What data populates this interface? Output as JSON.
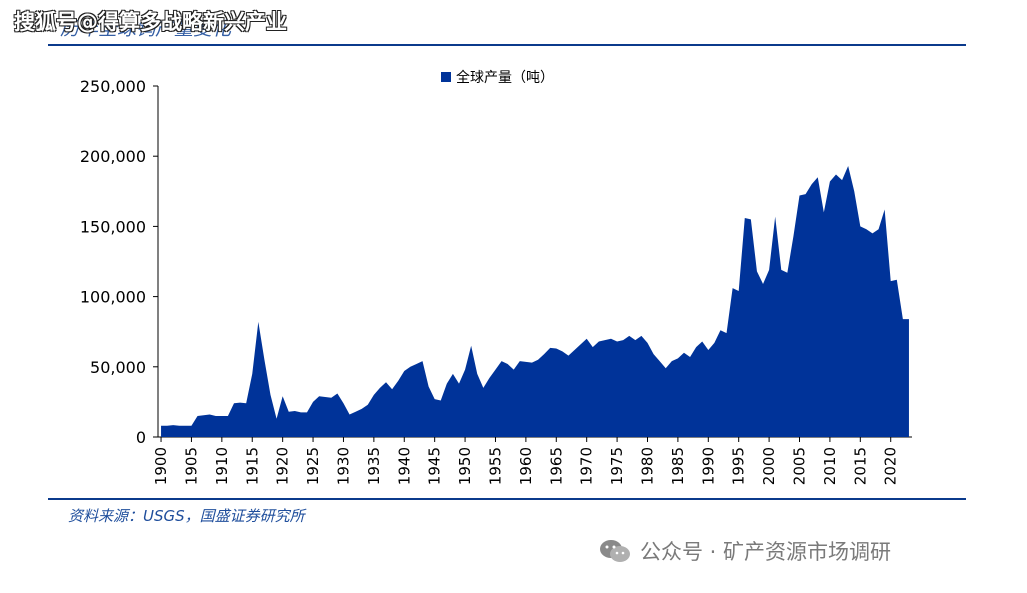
{
  "watermark": {
    "text": "搜狐号@得算多战略新兴产业"
  },
  "header": {
    "title": "历年全球钨产量变化"
  },
  "source": {
    "text": "资料来源：USGS，国盛证券研究所"
  },
  "footer": {
    "wechat_label": "公众号 · 矿产资源市场调研",
    "icon": "wechat-icon"
  },
  "colors": {
    "fill": "#003399",
    "rule": "#0b3a8c",
    "text": "#1f4e9c"
  },
  "chart_data": {
    "type": "area",
    "title": "",
    "xlabel": "",
    "ylabel": "",
    "legend": {
      "entries": [
        "全球产量（吨）"
      ],
      "placement": "top-center"
    },
    "grid": false,
    "xlim": [
      1900,
      2023
    ],
    "ylim": [
      0,
      250000
    ],
    "y_ticks": [
      0,
      50000,
      100000,
      150000,
      200000,
      250000
    ],
    "y_tick_labels": [
      "0",
      "50,000",
      "100,000",
      "150,000",
      "200,000",
      "250,000"
    ],
    "x_ticks": [
      1900,
      1905,
      1910,
      1915,
      1920,
      1925,
      1930,
      1935,
      1940,
      1945,
      1950,
      1955,
      1960,
      1965,
      1970,
      1975,
      1980,
      1985,
      1990,
      1995,
      2000,
      2005,
      2010,
      2015,
      2020
    ],
    "x_tick_labels": [
      "1900",
      "1905",
      "1910",
      "1915",
      "1920",
      "1925",
      "1930",
      "1935",
      "1940",
      "1945",
      "1950",
      "1955",
      "1960",
      "1965",
      "1970",
      "1975",
      "1980",
      "1985",
      "1990",
      "1995",
      "2000",
      "2005",
      "2010",
      "2015",
      "2020"
    ],
    "series": [
      {
        "name": "全球产量（吨）",
        "x": [
          1900,
          1901,
          1902,
          1903,
          1904,
          1905,
          1906,
          1907,
          1908,
          1909,
          1910,
          1911,
          1912,
          1913,
          1914,
          1915,
          1916,
          1917,
          1918,
          1919,
          1920,
          1921,
          1922,
          1923,
          1924,
          1925,
          1926,
          1927,
          1928,
          1929,
          1930,
          1931,
          1932,
          1933,
          1934,
          1935,
          1936,
          1937,
          1938,
          1939,
          1940,
          1941,
          1942,
          1943,
          1944,
          1945,
          1946,
          1947,
          1948,
          1949,
          1950,
          1951,
          1952,
          1953,
          1954,
          1955,
          1956,
          1957,
          1958,
          1959,
          1960,
          1961,
          1962,
          1963,
          1964,
          1965,
          1966,
          1967,
          1968,
          1969,
          1970,
          1971,
          1972,
          1973,
          1974,
          1975,
          1976,
          1977,
          1978,
          1979,
          1980,
          1981,
          1982,
          1983,
          1984,
          1985,
          1986,
          1987,
          1988,
          1989,
          1990,
          1991,
          1992,
          1993,
          1994,
          1995,
          1996,
          1997,
          1998,
          1999,
          2000,
          2001,
          2002,
          2003,
          2004,
          2005,
          2006,
          2007,
          2008,
          2009,
          2010,
          2011,
          2012,
          2013,
          2014,
          2015,
          2016,
          2017,
          2018,
          2019,
          2020,
          2021,
          2022,
          2023
        ],
        "values": [
          8000,
          8000,
          8500,
          8000,
          8000,
          8000,
          15000,
          15500,
          16000,
          15000,
          15000,
          15000,
          24000,
          24500,
          24000,
          45000,
          82000,
          55000,
          30000,
          13000,
          29000,
          18000,
          18500,
          17500,
          17500,
          25000,
          29000,
          28500,
          28000,
          31000,
          24000,
          16000,
          18000,
          20000,
          23000,
          30000,
          35000,
          39000,
          34000,
          40000,
          47000,
          50000,
          52000,
          54000,
          36000,
          27000,
          26000,
          38000,
          45000,
          38000,
          48000,
          65000,
          45000,
          35000,
          42000,
          48000,
          54000,
          52000,
          48000,
          54000,
          53500,
          53000,
          55000,
          59000,
          63500,
          63000,
          61000,
          58000,
          62000,
          66000,
          70000,
          64000,
          68000,
          69000,
          70000,
          68000,
          69000,
          72000,
          69000,
          72000,
          67000,
          59000,
          54000,
          49000,
          54000,
          56000,
          60000,
          57000,
          64000,
          68000,
          62000,
          67000,
          76000,
          74000,
          106000,
          104000,
          156000,
          155000,
          118000,
          109000,
          119000,
          157000,
          119000,
          117000,
          143000,
          172000,
          173000,
          180000,
          185000,
          160000,
          182000,
          187000,
          183000,
          193000,
          175000,
          150000,
          148000,
          145000,
          148000,
          162000,
          111000,
          112000,
          84000,
          84000
        ]
      }
    ]
  }
}
